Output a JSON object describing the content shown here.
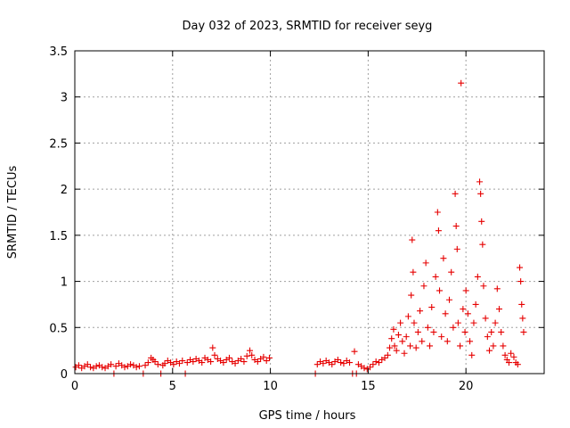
{
  "chart_data": {
    "type": "scatter",
    "title": "Day 032 of 2023, SRMTID for receiver seyg",
    "xlabel": "GPS time / hours",
    "ylabel": "SRMTID / TECUs",
    "xlim": [
      0,
      24
    ],
    "ylim": [
      0,
      3.5
    ],
    "x_ticks": [
      0,
      5,
      10,
      15,
      20
    ],
    "y_ticks": [
      0,
      0.5,
      1,
      1.5,
      2,
      2.5,
      3,
      3.5
    ],
    "grid": true,
    "marker": "+",
    "series_color": "#e60000",
    "series": [
      {
        "name": "SRMTID",
        "points": [
          [
            0.05,
            0.07
          ],
          [
            0.2,
            0.09
          ],
          [
            0.35,
            0.06
          ],
          [
            0.5,
            0.08
          ],
          [
            0.65,
            0.1
          ],
          [
            0.8,
            0.07
          ],
          [
            0.95,
            0.06
          ],
          [
            1.1,
            0.08
          ],
          [
            1.25,
            0.09
          ],
          [
            1.4,
            0.07
          ],
          [
            1.55,
            0.06
          ],
          [
            1.7,
            0.08
          ],
          [
            1.85,
            0.1
          ],
          [
            2.0,
            0.0
          ],
          [
            2.1,
            0.08
          ],
          [
            2.25,
            0.11
          ],
          [
            2.4,
            0.09
          ],
          [
            2.55,
            0.07
          ],
          [
            2.7,
            0.08
          ],
          [
            2.85,
            0.1
          ],
          [
            3.0,
            0.09
          ],
          [
            3.15,
            0.07
          ],
          [
            3.3,
            0.08
          ],
          [
            3.5,
            0.0
          ],
          [
            3.6,
            0.09
          ],
          [
            3.75,
            0.12
          ],
          [
            3.9,
            0.17
          ],
          [
            4.0,
            0.15
          ],
          [
            4.1,
            0.13
          ],
          [
            4.25,
            0.1
          ],
          [
            4.4,
            0.0
          ],
          [
            4.5,
            0.09
          ],
          [
            4.6,
            0.11
          ],
          [
            4.75,
            0.14
          ],
          [
            4.9,
            0.12
          ],
          [
            5.05,
            0.1
          ],
          [
            5.2,
            0.13
          ],
          [
            5.35,
            0.11
          ],
          [
            5.5,
            0.14
          ],
          [
            5.65,
            0.0
          ],
          [
            5.75,
            0.12
          ],
          [
            5.9,
            0.15
          ],
          [
            6.05,
            0.13
          ],
          [
            6.2,
            0.16
          ],
          [
            6.35,
            0.14
          ],
          [
            6.5,
            0.12
          ],
          [
            6.65,
            0.17
          ],
          [
            6.8,
            0.15
          ],
          [
            6.95,
            0.13
          ],
          [
            7.05,
            0.28
          ],
          [
            7.15,
            0.2
          ],
          [
            7.3,
            0.16
          ],
          [
            7.45,
            0.14
          ],
          [
            7.6,
            0.12
          ],
          [
            7.75,
            0.15
          ],
          [
            7.9,
            0.17
          ],
          [
            8.05,
            0.13
          ],
          [
            8.2,
            0.11
          ],
          [
            8.35,
            0.14
          ],
          [
            8.5,
            0.16
          ],
          [
            8.65,
            0.13
          ],
          [
            8.8,
            0.19
          ],
          [
            8.95,
            0.25
          ],
          [
            9.05,
            0.2
          ],
          [
            9.2,
            0.15
          ],
          [
            9.35,
            0.13
          ],
          [
            9.5,
            0.16
          ],
          [
            9.65,
            0.18
          ],
          [
            9.8,
            0.14
          ],
          [
            9.95,
            0.17
          ],
          [
            12.3,
            0.0
          ],
          [
            12.4,
            0.1
          ],
          [
            12.55,
            0.13
          ],
          [
            12.7,
            0.11
          ],
          [
            12.85,
            0.14
          ],
          [
            13.0,
            0.12
          ],
          [
            13.15,
            0.1
          ],
          [
            13.3,
            0.13
          ],
          [
            13.45,
            0.15
          ],
          [
            13.6,
            0.12
          ],
          [
            13.75,
            0.11
          ],
          [
            13.9,
            0.14
          ],
          [
            14.05,
            0.12
          ],
          [
            14.2,
            0.0
          ],
          [
            14.3,
            0.24
          ],
          [
            14.4,
            0.0
          ],
          [
            14.5,
            0.1
          ],
          [
            14.65,
            0.08
          ],
          [
            14.8,
            0.06
          ],
          [
            14.95,
            0.05
          ],
          [
            15.1,
            0.07
          ],
          [
            15.25,
            0.1
          ],
          [
            15.4,
            0.13
          ],
          [
            15.55,
            0.12
          ],
          [
            15.7,
            0.15
          ],
          [
            15.85,
            0.17
          ],
          [
            16.0,
            0.2
          ],
          [
            16.1,
            0.28
          ],
          [
            16.2,
            0.38
          ],
          [
            16.3,
            0.48
          ],
          [
            16.35,
            0.3
          ],
          [
            16.45,
            0.25
          ],
          [
            16.55,
            0.42
          ],
          [
            16.65,
            0.55
          ],
          [
            16.75,
            0.35
          ],
          [
            16.85,
            0.22
          ],
          [
            16.95,
            0.4
          ],
          [
            17.05,
            0.62
          ],
          [
            17.15,
            0.3
          ],
          [
            17.2,
            0.85
          ],
          [
            17.25,
            1.45
          ],
          [
            17.3,
            1.1
          ],
          [
            17.35,
            0.55
          ],
          [
            17.45,
            0.28
          ],
          [
            17.55,
            0.45
          ],
          [
            17.65,
            0.68
          ],
          [
            17.75,
            0.35
          ],
          [
            17.85,
            0.95
          ],
          [
            17.95,
            1.2
          ],
          [
            18.05,
            0.5
          ],
          [
            18.15,
            0.3
          ],
          [
            18.25,
            0.72
          ],
          [
            18.35,
            0.45
          ],
          [
            18.45,
            1.05
          ],
          [
            18.55,
            1.75
          ],
          [
            18.6,
            1.55
          ],
          [
            18.65,
            0.9
          ],
          [
            18.75,
            0.4
          ],
          [
            18.85,
            1.25
          ],
          [
            18.95,
            0.65
          ],
          [
            19.05,
            0.35
          ],
          [
            19.15,
            0.8
          ],
          [
            19.25,
            1.1
          ],
          [
            19.35,
            0.5
          ],
          [
            19.45,
            1.95
          ],
          [
            19.5,
            1.6
          ],
          [
            19.55,
            1.35
          ],
          [
            19.6,
            0.55
          ],
          [
            19.7,
            0.3
          ],
          [
            19.75,
            3.15
          ],
          [
            19.85,
            0.7
          ],
          [
            19.95,
            0.45
          ],
          [
            20.0,
            0.9
          ],
          [
            20.1,
            0.65
          ],
          [
            20.2,
            0.35
          ],
          [
            20.3,
            0.2
          ],
          [
            20.4,
            0.55
          ],
          [
            20.5,
            0.75
          ],
          [
            20.6,
            1.05
          ],
          [
            20.7,
            2.08
          ],
          [
            20.75,
            1.95
          ],
          [
            20.8,
            1.65
          ],
          [
            20.85,
            1.4
          ],
          [
            20.9,
            0.95
          ],
          [
            21.0,
            0.6
          ],
          [
            21.1,
            0.4
          ],
          [
            21.2,
            0.25
          ],
          [
            21.3,
            0.45
          ],
          [
            21.4,
            0.3
          ],
          [
            21.5,
            0.55
          ],
          [
            21.6,
            0.92
          ],
          [
            21.7,
            0.7
          ],
          [
            21.8,
            0.45
          ],
          [
            21.9,
            0.3
          ],
          [
            22.0,
            0.2
          ],
          [
            22.1,
            0.15
          ],
          [
            22.2,
            0.12
          ],
          [
            22.3,
            0.22
          ],
          [
            22.45,
            0.18
          ],
          [
            22.55,
            0.12
          ],
          [
            22.65,
            0.1
          ],
          [
            22.75,
            1.15
          ],
          [
            22.8,
            1.0
          ],
          [
            22.85,
            0.75
          ],
          [
            22.9,
            0.6
          ],
          [
            22.95,
            0.45
          ]
        ]
      }
    ]
  }
}
